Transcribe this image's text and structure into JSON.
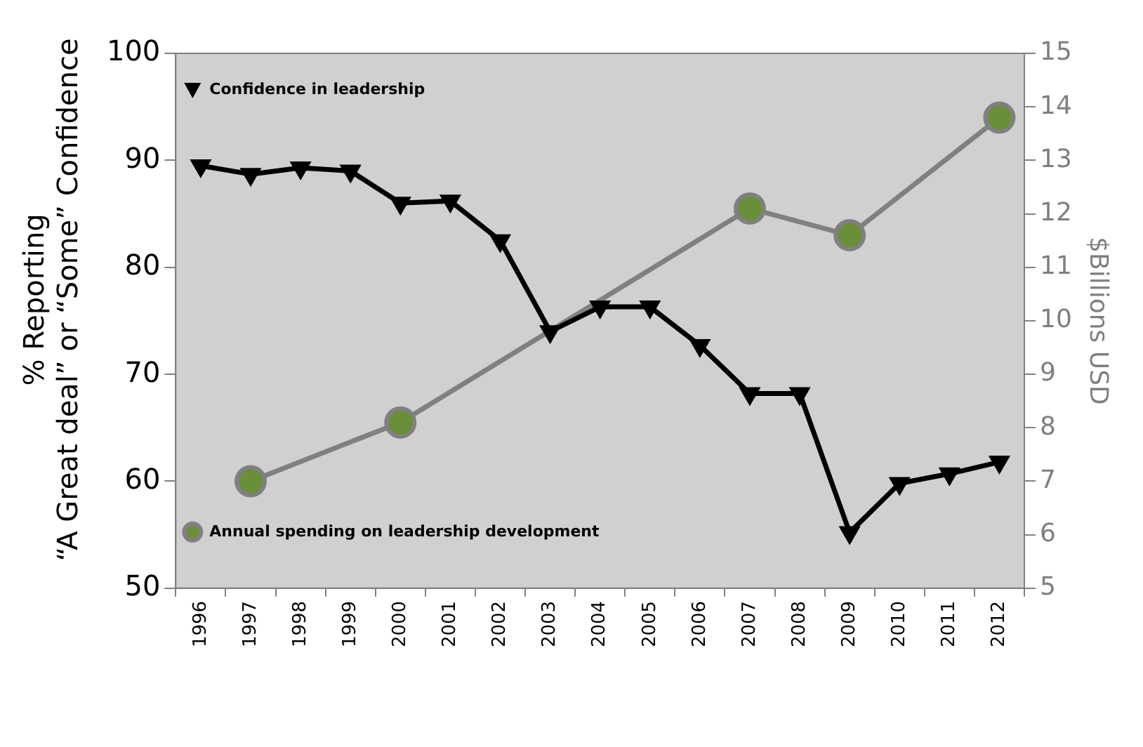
{
  "chart_data": {
    "type": "line",
    "categories": [
      "1996",
      "1997",
      "1998",
      "1999",
      "2000",
      "2001",
      "2002",
      "2003",
      "2004",
      "2005",
      "2006",
      "2007",
      "2008",
      "2009",
      "2010",
      "2011",
      "2012"
    ],
    "series": [
      {
        "name": "Confidence in leadership",
        "color": "#000000",
        "marker": "triangle",
        "values": [
          89.5,
          88.7,
          89.3,
          89.0,
          86.0,
          86.2,
          82.5,
          74.0,
          76.3,
          76.3,
          72.7,
          68.2,
          68.2,
          55.2,
          59.8,
          60.7,
          61.8
        ]
      },
      {
        "name": "Annual spending on leadership development",
        "color": "#808080",
        "marker": "circle",
        "axis": "y2",
        "values": [
          null,
          7.0,
          null,
          null,
          8.1,
          null,
          null,
          null,
          null,
          null,
          null,
          12.1,
          null,
          11.6,
          null,
          null,
          13.8
        ]
      }
    ],
    "ylabel": "% Reporting\n“A Great deal” or “Some” Confidence",
    "y2label": "$Billions USD",
    "ylim": [
      50,
      100
    ],
    "yticks": [
      50,
      60,
      70,
      80,
      90,
      100
    ],
    "y2lim": [
      5,
      15
    ],
    "y2ticks": [
      5,
      6,
      7,
      8,
      9,
      10,
      11,
      12,
      13,
      14,
      15
    ],
    "grid": false,
    "legend": "left"
  }
}
